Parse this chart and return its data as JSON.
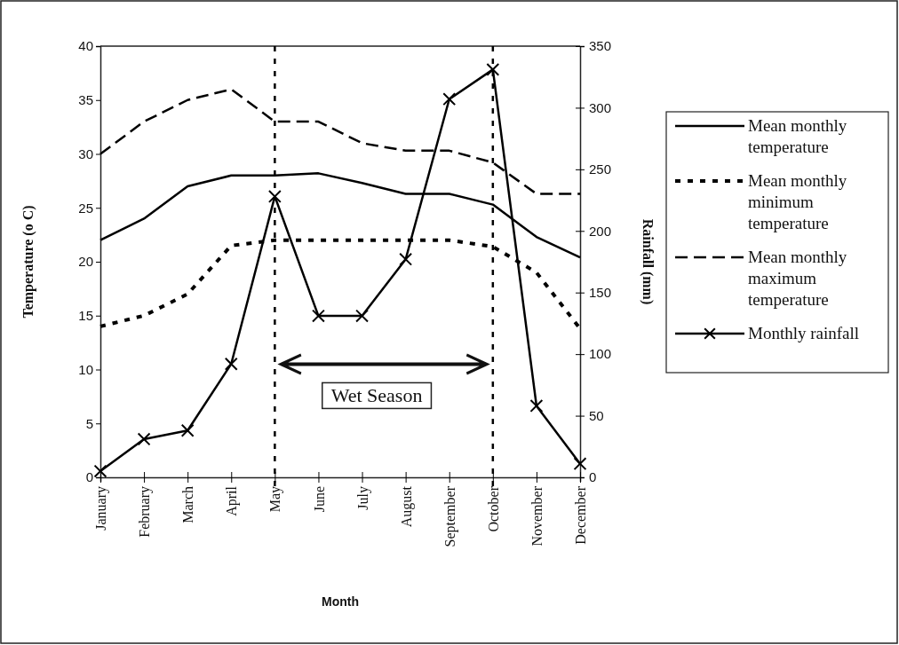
{
  "chart_data": {
    "type": "line",
    "xlabel": "Month",
    "ylabel": "Temperature (o C)",
    "y2label": "Rainfall (mm)",
    "categories": [
      "January",
      "February",
      "March",
      "April",
      "May",
      "June",
      "July",
      "August",
      "September",
      "October",
      "November",
      "December"
    ],
    "ylim": [
      0,
      40
    ],
    "yticks": [
      0,
      5,
      10,
      15,
      20,
      25,
      30,
      35,
      40
    ],
    "y2lim": [
      0,
      350
    ],
    "y2ticks": [
      0,
      50,
      100,
      150,
      200,
      250,
      300,
      350
    ],
    "legend": "right",
    "grid": false,
    "series": [
      {
        "name": "Mean monthly temperature",
        "color": "#000000",
        "line_style": "solid",
        "marker": "none",
        "values": [
          22,
          24,
          27,
          28,
          28,
          28.2,
          27.3,
          26.3,
          26.3,
          25.3,
          22.3,
          20.4
        ]
      },
      {
        "name": "Mean monthly minimum temperature",
        "color": "#000000",
        "line_style": "dotted",
        "marker": "none",
        "values": [
          14,
          15,
          17,
          21.5,
          22,
          22,
          22,
          22,
          22,
          21.4,
          19,
          13.8
        ]
      },
      {
        "name": "Mean monthly maximum temperature",
        "color": "#000000",
        "line_style": "dashed",
        "marker": "none",
        "values": [
          30,
          33,
          35,
          36,
          33,
          33,
          31,
          30.3,
          30.3,
          29.2,
          26.3,
          26.3
        ]
      },
      {
        "name": "Monthly rainfall",
        "color": "#000000",
        "line_style": "solid",
        "marker": "cross",
        "axis": "y2",
        "values": [
          5,
          31,
          38,
          92,
          228,
          131,
          131,
          177,
          307,
          331,
          58,
          11
        ]
      }
    ],
    "ref_lines": [
      {
        "axis": "x",
        "value": "May",
        "line_style": "dotted",
        "color": "#000000"
      },
      {
        "axis": "x",
        "value": "October",
        "line_style": "dotted",
        "color": "#000000"
      }
    ],
    "annotations": [
      "Wet Season"
    ]
  }
}
